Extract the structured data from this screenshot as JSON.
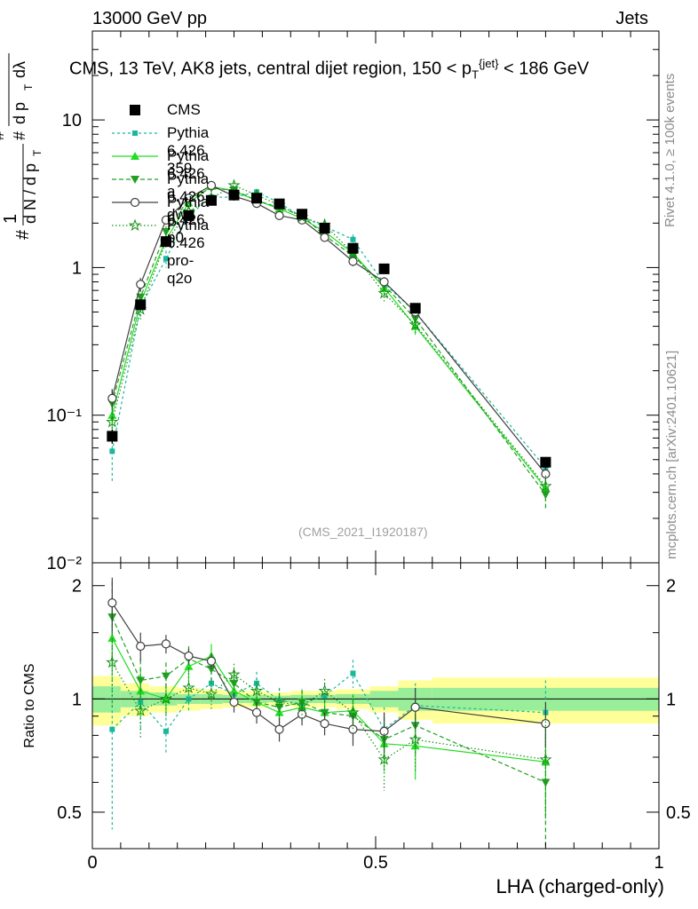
{
  "header": {
    "left": "13000 GeV pp",
    "right": "Jets"
  },
  "title": "CMS, 13 TeV, AK8 jets, central dijet region, 150 < p_T^{jet} < 186 GeV",
  "side_labels": {
    "top": "Rivet 4.1.0, ≥ 100k events",
    "bottom": "mcplots.cern.ch [arXiv:2401.10621]"
  },
  "analysis_id": "(CMS_2021_I1920187)",
  "ratio_ylabel": "Ratio to CMS",
  "ylabel_parts": {
    "hash": "#",
    "one": "1",
    "dN": "d N / d p",
    "T": "T",
    "d2N": "d²N",
    "dpT": "d p",
    "dlambda": "dλ"
  },
  "colors": {
    "cms": "#000000",
    "p359": "#18b89c",
    "pa": "#22dd22",
    "pdw": "#20a020",
    "pp0": "#404040",
    "pro": "#159015",
    "band_outer": "#ffff99",
    "band_inner": "#99ee99"
  },
  "chart_data": {
    "type": "line",
    "xlabel": "LHA (charged-only)",
    "ylabel": "# 1/(dN/dp_T) # d²N/(dp_T dλ)",
    "xlim": [
      0,
      1
    ],
    "ylim": [
      0.01,
      40
    ],
    "yscale": "log",
    "ratio_ylim": [
      0.4,
      2.3
    ],
    "x_ticks": [
      "0",
      "0.5",
      "1"
    ],
    "y_ticks": [
      "10⁻²",
      "10⁻¹",
      "1",
      "10"
    ],
    "ratio_ticks": [
      "0.5",
      "1",
      "2"
    ],
    "x": [
      0.035,
      0.085,
      0.13,
      0.17,
      0.21,
      0.25,
      0.29,
      0.33,
      0.37,
      0.41,
      0.46,
      0.515,
      0.57,
      0.8
    ],
    "series": [
      {
        "name": "CMS",
        "key": "cms",
        "marker": "square-filled",
        "values": [
          0.072,
          0.56,
          1.5,
          2.25,
          2.85,
          3.1,
          2.95,
          2.7,
          2.3,
          1.85,
          1.35,
          0.98,
          0.53,
          0.048
        ],
        "errors": [
          0.008,
          0.04,
          0.08,
          0.1,
          0.1,
          0.1,
          0.1,
          0.1,
          0.1,
          0.08,
          0.06,
          0.05,
          0.03,
          0.004
        ]
      },
      {
        "name": "Pythia 6.426 359",
        "key": "p359",
        "marker": "square-small",
        "dash": "3,3",
        "values": [
          0.057,
          0.54,
          1.15,
          2.25,
          3.0,
          3.0,
          3.25,
          2.75,
          2.2,
          1.9,
          1.55,
          0.78,
          0.5,
          0.044
        ],
        "errors": [
          0.022,
          0.08,
          0.15,
          0.15,
          0.15,
          0.15,
          0.15,
          0.15,
          0.12,
          0.12,
          0.12,
          0.08,
          0.06,
          0.008
        ]
      },
      {
        "name": "Pythia 6.426 a",
        "key": "pa",
        "marker": "triangle-up",
        "dash": "",
        "values": [
          0.1,
          0.58,
          1.55,
          2.75,
          3.55,
          3.3,
          2.85,
          2.5,
          2.15,
          1.75,
          1.25,
          0.73,
          0.4,
          0.032
        ],
        "errors": [
          0.02,
          0.08,
          0.15,
          0.15,
          0.15,
          0.15,
          0.15,
          0.15,
          0.12,
          0.12,
          0.1,
          0.08,
          0.05,
          0.006
        ]
      },
      {
        "name": "Pythia 6.426 dw",
        "key": "pdw",
        "marker": "triangle-down",
        "dash": "5,3",
        "values": [
          0.12,
          0.63,
          1.75,
          2.9,
          3.45,
          3.35,
          2.85,
          2.55,
          2.25,
          1.65,
          1.2,
          0.76,
          0.45,
          0.029
        ],
        "errors": [
          0.03,
          0.1,
          0.15,
          0.15,
          0.15,
          0.15,
          0.15,
          0.15,
          0.12,
          0.12,
          0.1,
          0.08,
          0.05,
          0.006
        ]
      },
      {
        "name": "Pythia 6.426 p0",
        "key": "pp0",
        "marker": "circle-open",
        "dash": "",
        "values": [
          0.13,
          0.77,
          2.1,
          2.95,
          3.6,
          3.05,
          2.72,
          2.25,
          2.1,
          1.6,
          1.1,
          0.8,
          0.5,
          0.04
        ],
        "errors": [
          0.02,
          0.08,
          0.15,
          0.15,
          0.15,
          0.15,
          0.15,
          0.15,
          0.12,
          0.1,
          0.08,
          0.06,
          0.05,
          0.005
        ]
      },
      {
        "name": "Pythia 6.426 pro-q2o",
        "key": "pro",
        "marker": "star",
        "dash": "1.5,2.5",
        "values": [
          0.09,
          0.52,
          1.5,
          2.4,
          2.95,
          3.6,
          3.1,
          2.65,
          2.2,
          1.95,
          1.25,
          0.67,
          0.41,
          0.033
        ],
        "errors": [
          0.02,
          0.08,
          0.15,
          0.15,
          0.15,
          0.15,
          0.15,
          0.15,
          0.12,
          0.12,
          0.1,
          0.08,
          0.05,
          0.006
        ]
      }
    ],
    "ratio_series": [
      {
        "key": "p359",
        "values": [
          0.83,
          0.98,
          0.82,
          1.0,
          1.1,
          1.03,
          1.1,
          0.99,
          0.97,
          1.02,
          1.17,
          0.83,
          0.96,
          0.92
        ],
        "errors": [
          0.38,
          0.15,
          0.1,
          0.08,
          0.08,
          0.08,
          0.08,
          0.08,
          0.08,
          0.08,
          0.1,
          0.12,
          0.14,
          0.2
        ]
      },
      {
        "key": "pa",
        "values": [
          1.45,
          1.05,
          1.0,
          1.22,
          1.3,
          1.05,
          0.98,
          0.92,
          0.95,
          0.92,
          0.93,
          0.76,
          0.75,
          0.68
        ],
        "errors": [
          0.3,
          0.15,
          0.1,
          0.1,
          0.1,
          0.08,
          0.08,
          0.08,
          0.08,
          0.08,
          0.1,
          0.12,
          0.14,
          0.2
        ]
      },
      {
        "key": "pdw",
        "values": [
          1.65,
          1.12,
          1.15,
          1.28,
          1.2,
          1.1,
          0.98,
          0.95,
          0.98,
          0.92,
          0.9,
          0.78,
          0.85,
          0.6
        ],
        "errors": [
          0.4,
          0.15,
          0.1,
          0.1,
          0.1,
          0.08,
          0.08,
          0.08,
          0.08,
          0.08,
          0.1,
          0.12,
          0.14,
          0.2
        ]
      },
      {
        "key": "pp0",
        "values": [
          1.8,
          1.38,
          1.4,
          1.3,
          1.26,
          0.98,
          0.92,
          0.83,
          0.91,
          0.86,
          0.83,
          0.82,
          0.95,
          0.86
        ],
        "errors": [
          0.3,
          0.12,
          0.08,
          0.06,
          0.06,
          0.06,
          0.06,
          0.06,
          0.06,
          0.06,
          0.08,
          0.1,
          0.12,
          0.12
        ]
      },
      {
        "key": "pro",
        "values": [
          1.25,
          0.93,
          1.0,
          1.07,
          1.03,
          1.16,
          1.05,
          0.98,
          0.96,
          1.05,
          0.92,
          0.69,
          0.78,
          0.69
        ],
        "errors": [
          0.3,
          0.15,
          0.1,
          0.1,
          0.1,
          0.08,
          0.08,
          0.08,
          0.08,
          0.08,
          0.1,
          0.12,
          0.14,
          0.2
        ]
      }
    ],
    "band": {
      "edges": [
        0.0,
        0.05,
        0.1,
        0.15,
        0.19,
        0.23,
        0.27,
        0.31,
        0.35,
        0.39,
        0.43,
        0.49,
        0.54,
        0.6,
        1.0
      ],
      "outer": [
        0.15,
        0.1,
        0.08,
        0.07,
        0.06,
        0.05,
        0.05,
        0.04,
        0.05,
        0.05,
        0.06,
        0.08,
        0.12,
        0.14
      ],
      "inner": [
        0.08,
        0.05,
        0.04,
        0.03,
        0.03,
        0.025,
        0.025,
        0.02,
        0.025,
        0.025,
        0.03,
        0.05,
        0.07,
        0.07
      ]
    },
    "legend": [
      "CMS",
      "Pythia 6.426 359",
      "Pythia 6.426 a",
      "Pythia 6.426 dw",
      "Pythia 6.426 p0",
      "Pythia 6.426 pro-q2o"
    ]
  }
}
